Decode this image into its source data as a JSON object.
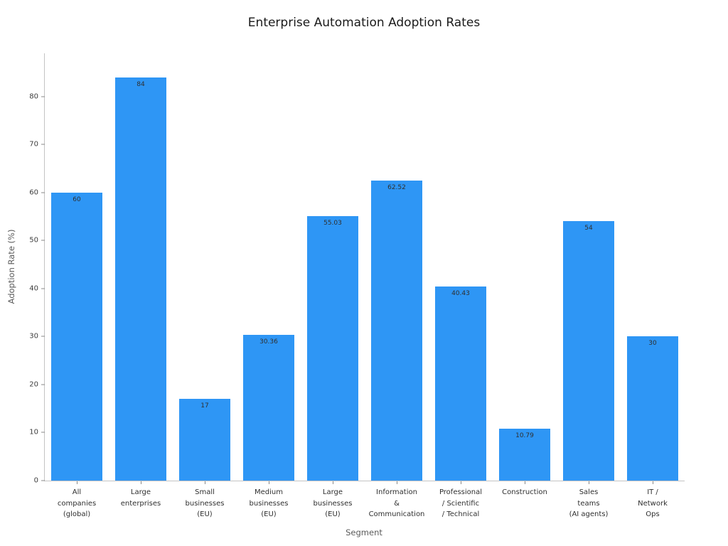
{
  "chart_data": {
    "type": "bar",
    "title": "Enterprise Automation Adoption Rates",
    "xlabel": "Segment",
    "ylabel": "Adoption Rate (%)",
    "categories": [
      "All\ncompanies\n(global)",
      "Large\nenterprises",
      "Small\nbusinesses\n(EU)",
      "Medium\nbusinesses\n(EU)",
      "Large\nbusinesses\n(EU)",
      "Information\n&\nCommunication",
      "Professional\n/ Scientific\n/ Technical",
      "Construction",
      "Sales\nteams\n(AI agents)",
      "IT /\nNetwork\nOps"
    ],
    "values": [
      60,
      84,
      17,
      30.36,
      55.03,
      62.52,
      40.43,
      10.79,
      54,
      30
    ],
    "value_labels": [
      "60",
      "84",
      "17",
      "30.36",
      "55.03",
      "62.52",
      "40.43",
      "10.79",
      "54",
      "30"
    ],
    "ylim": [
      0,
      89
    ],
    "yticks": [
      0,
      10,
      20,
      30,
      40,
      50,
      60,
      70,
      80
    ],
    "bar_color": "#2E96F5",
    "grid": false,
    "legend": "none"
  }
}
